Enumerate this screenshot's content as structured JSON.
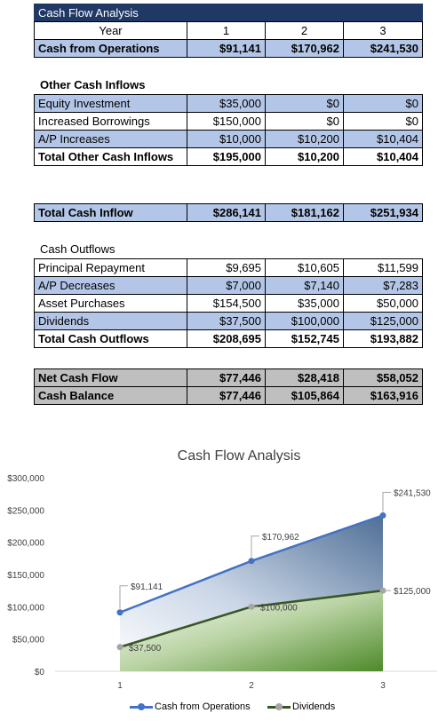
{
  "header": {
    "title": "Cash Flow Analysis"
  },
  "year_row": {
    "label": "Year",
    "cols": [
      "1",
      "2",
      "3"
    ]
  },
  "ops_row": {
    "label": "Cash from Operations",
    "values": [
      "$91,141",
      "$170,962",
      "$241,530"
    ]
  },
  "other_inflows": {
    "heading": "Other Cash Inflows",
    "rows": [
      {
        "label": "Equity Investment",
        "values": [
          "$35,000",
          "$0",
          "$0"
        ]
      },
      {
        "label": "Increased Borrowings",
        "values": [
          "$150,000",
          "$0",
          "$0"
        ]
      },
      {
        "label": "A/P Increases",
        "values": [
          "$10,000",
          "$10,200",
          "$10,404"
        ]
      }
    ],
    "total": {
      "label": "Total Other Cash Inflows",
      "values": [
        "$195,000",
        "$10,200",
        "$10,404"
      ]
    }
  },
  "total_inflow": {
    "label": "Total Cash Inflow",
    "values": [
      "$286,141",
      "$181,162",
      "$251,934"
    ]
  },
  "outflows": {
    "heading": "Cash Outflows",
    "rows": [
      {
        "label": "Principal Repayment",
        "values": [
          "$9,695",
          "$10,605",
          "$11,599"
        ]
      },
      {
        "label": "A/P Decreases",
        "values": [
          "$7,000",
          "$7,140",
          "$7,283"
        ]
      },
      {
        "label": "Asset Purchases",
        "values": [
          "$154,500",
          "$35,000",
          "$50,000"
        ]
      },
      {
        "label": "Dividends",
        "values": [
          "$37,500",
          "$100,000",
          "$125,000"
        ]
      }
    ],
    "total": {
      "label": "Total Cash Outflows",
      "values": [
        "$208,695",
        "$152,745",
        "$193,882"
      ]
    }
  },
  "summary": [
    {
      "label": "Net Cash Flow",
      "values": [
        "$77,446",
        "$28,418",
        "$58,052"
      ]
    },
    {
      "label": "Cash Balance",
      "values": [
        "$77,446",
        "$105,864",
        "$163,916"
      ]
    }
  ],
  "colors": {
    "header_bg": "#1f3864",
    "row_blue": "#b4c6e7",
    "row_gray": "#bfbfbf",
    "series_ops": "#4472c4",
    "series_div": "#375623",
    "marker_div": "#a5a5a5"
  },
  "chart_data": {
    "type": "area",
    "title": "Cash Flow Analysis",
    "x": [
      1,
      2,
      3
    ],
    "xlabel": "",
    "ylabel": "",
    "ylim": [
      0,
      300000
    ],
    "yticks": [
      "$0",
      "$50,000",
      "$100,000",
      "$150,000",
      "$200,000",
      "$250,000",
      "$300,000"
    ],
    "grid": false,
    "legend_position": "bottom",
    "series": [
      {
        "name": "Cash from Operations",
        "values": [
          91141,
          170962,
          241530
        ],
        "labels": [
          "$91,141",
          "$170,962",
          "$241,530"
        ],
        "color": "#4472c4"
      },
      {
        "name": "Dividends",
        "values": [
          37500,
          100000,
          125000
        ],
        "labels": [
          "$37,500",
          "$100,000",
          "$125,000"
        ],
        "color": "#375623"
      }
    ]
  }
}
